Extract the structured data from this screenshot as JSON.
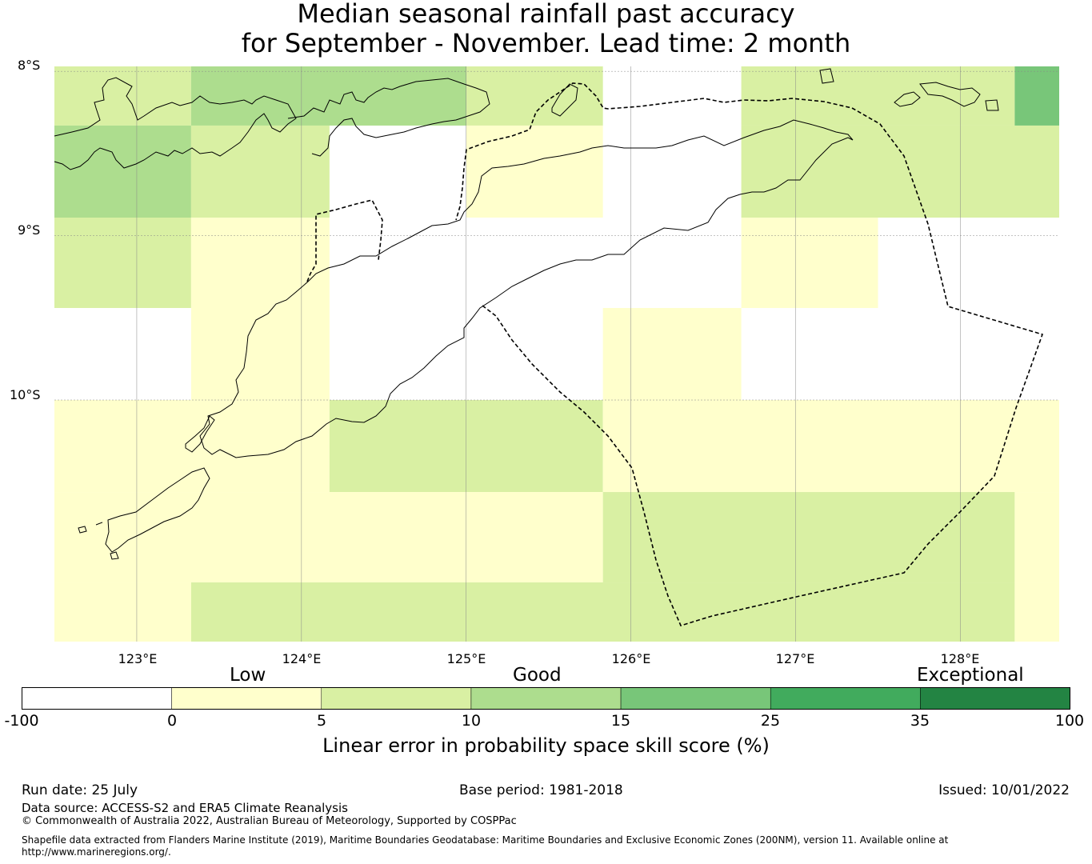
{
  "title_line1": "Median seasonal rainfall past accuracy",
  "title_line2": "for September - November. Lead time: 2 month",
  "lat_labels": [
    "8°S",
    "9°S",
    "10°S"
  ],
  "lon_labels": [
    "123°E",
    "124°E",
    "125°E",
    "126°E",
    "127°E",
    "128°E"
  ],
  "map_extent": {
    "lon_min": 122.5,
    "lon_max": 128.6,
    "lat_top": -7.97,
    "lat_bottom": -11.47
  },
  "legend": {
    "category_labels": [
      "Low",
      "Good",
      "Exceptional"
    ],
    "ticks": [
      "-100",
      "0",
      "5",
      "10",
      "15",
      "25",
      "35",
      "100"
    ],
    "colors": [
      "#ffffff",
      "#ffffcc",
      "#d9f0a3",
      "#addd8e",
      "#78c679",
      "#41ab5d",
      "#238443"
    ],
    "title": "Linear error in probability space skill score (%)"
  },
  "grid_cells": [
    {
      "lon0": 122.5,
      "lon1": 123.33,
      "lat0": -7.97,
      "lat1": -8.33,
      "color": "#d9f0a3"
    },
    {
      "lon0": 123.33,
      "lon1": 125.0,
      "lat0": -7.97,
      "lat1": -8.33,
      "color": "#addd8e"
    },
    {
      "lon0": 125.0,
      "lon1": 125.83,
      "lat0": -7.97,
      "lat1": -8.33,
      "color": "#d9f0a3"
    },
    {
      "lon0": 126.67,
      "lon1": 128.33,
      "lat0": -7.97,
      "lat1": -8.33,
      "color": "#d9f0a3"
    },
    {
      "lon0": 128.33,
      "lon1": 128.6,
      "lat0": -7.97,
      "lat1": -8.33,
      "color": "#78c679"
    },
    {
      "lon0": 122.5,
      "lon1": 123.33,
      "lat0": -8.33,
      "lat1": -8.89,
      "color": "#addd8e"
    },
    {
      "lon0": 123.33,
      "lon1": 124.17,
      "lat0": -8.33,
      "lat1": -8.89,
      "color": "#d9f0a3"
    },
    {
      "lon0": 125.0,
      "lon1": 125.83,
      "lat0": -8.33,
      "lat1": -8.89,
      "color": "#ffffcc"
    },
    {
      "lon0": 126.67,
      "lon1": 128.6,
      "lat0": -8.33,
      "lat1": -8.89,
      "color": "#d9f0a3"
    },
    {
      "lon0": 122.5,
      "lon1": 123.33,
      "lat0": -8.89,
      "lat1": -9.44,
      "color": "#d9f0a3"
    },
    {
      "lon0": 123.33,
      "lon1": 124.17,
      "lat0": -8.89,
      "lat1": -9.44,
      "color": "#ffffcc"
    },
    {
      "lon0": 126.67,
      "lon1": 127.5,
      "lat0": -8.89,
      "lat1": -9.44,
      "color": "#ffffcc"
    },
    {
      "lon0": 123.33,
      "lon1": 124.17,
      "lat0": -9.44,
      "lat1": -10.0,
      "color": "#ffffcc"
    },
    {
      "lon0": 125.83,
      "lon1": 126.67,
      "lat0": -9.44,
      "lat1": -10.0,
      "color": "#ffffcc"
    },
    {
      "lon0": 122.5,
      "lon1": 124.17,
      "lat0": -10.0,
      "lat1": -10.56,
      "color": "#ffffcc"
    },
    {
      "lon0": 124.17,
      "lon1": 125.83,
      "lat0": -10.0,
      "lat1": -10.56,
      "color": "#d9f0a3"
    },
    {
      "lon0": 125.83,
      "lon1": 128.6,
      "lat0": -10.0,
      "lat1": -10.56,
      "color": "#ffffcc"
    },
    {
      "lon0": 122.5,
      "lon1": 125.83,
      "lat0": -10.56,
      "lat1": -11.11,
      "color": "#ffffcc"
    },
    {
      "lon0": 125.83,
      "lon1": 128.33,
      "lat0": -10.56,
      "lat1": -11.11,
      "color": "#d9f0a3"
    },
    {
      "lon0": 128.33,
      "lon1": 128.6,
      "lat0": -10.56,
      "lat1": -11.11,
      "color": "#ffffcc"
    },
    {
      "lon0": 122.5,
      "lon1": 123.33,
      "lat0": -11.11,
      "lat1": -11.47,
      "color": "#ffffcc"
    },
    {
      "lon0": 123.33,
      "lon1": 128.33,
      "lat0": -11.11,
      "lat1": -11.47,
      "color": "#d9f0a3"
    },
    {
      "lon0": 128.33,
      "lon1": 128.6,
      "lat0": -11.11,
      "lat1": -11.47,
      "color": "#ffffcc"
    }
  ],
  "footer": {
    "run_date": "Run date: 25 July",
    "base_period": "Base period: 1981-2018",
    "issued": "Issued: 10/01/2022",
    "data_source": "Data source: ACCESS-S2 and ERA5 Climate Reanalysis",
    "copyright": "© Commonwealth of Australia 2022, Australian Bureau of Meteorology, Supported by COSPPac",
    "shapefile": "Shapefile data extracted from Flanders Marine Institute (2019), Maritime Boundaries Geodatabase: Maritime Boundaries and Exclusive Economic Zones (200NM), version 11. Available online at http://www.marineregions.org/."
  }
}
